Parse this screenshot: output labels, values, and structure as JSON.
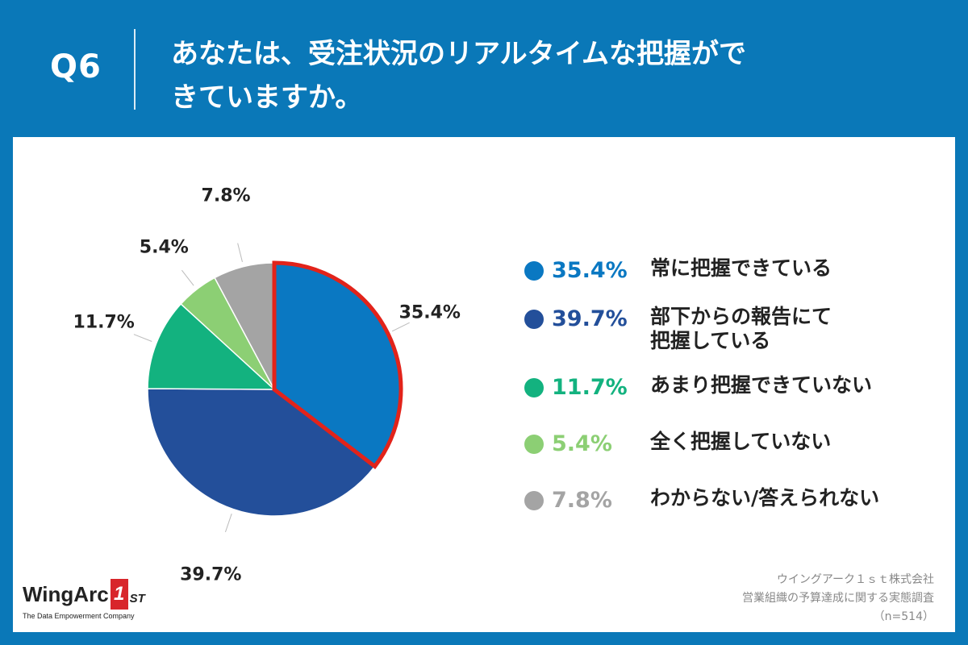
{
  "header": {
    "q_label": "Q6",
    "question_lines": [
      "あなたは、受注状況のリアルタイムな把握がで",
      "きていますか。"
    ]
  },
  "chart_data": {
    "type": "pie",
    "categories": [
      "常に把握できている",
      "部下からの報告にて把握している",
      "あまり把握できていない",
      "全く把握していない",
      "わからない/答えられない"
    ],
    "values": [
      35.4,
      39.7,
      11.7,
      5.4,
      7.8
    ],
    "value_labels": [
      "35.4%",
      "39.7%",
      "11.7%",
      "5.4%",
      "7.8%"
    ],
    "colors": [
      "#0a78c2",
      "#234f9a",
      "#13b27f",
      "#8ccf74",
      "#a4a4a4"
    ],
    "highlighted_slice": 0,
    "highlight_color": "#e2231a",
    "start": "12 o'clock, clockwise"
  },
  "legend": [
    {
      "pct": "35.4%",
      "lines": [
        "常に把握できている"
      ],
      "color": "#0a78c2"
    },
    {
      "pct": "39.7%",
      "lines": [
        "部下からの報告にて",
        "把握している"
      ],
      "color": "#234f9a"
    },
    {
      "pct": "11.7%",
      "lines": [
        "あまり把握できていない"
      ],
      "color": "#13b27f"
    },
    {
      "pct": "5.4%",
      "lines": [
        "全く把握していない"
      ],
      "color": "#8ccf74"
    },
    {
      "pct": "7.8%",
      "lines": [
        "わからない/答えられない"
      ],
      "color": "#a4a4a4"
    }
  ],
  "logo": {
    "word": "WingArc",
    "number": "1",
    "suffix": "ST",
    "tagline": "The Data Empowerment Company"
  },
  "source": {
    "lines": [
      "ウイングアーク１ｓｔ株式会社",
      "営業組織の予算達成に関する実態調査",
      "（n=514）"
    ]
  }
}
